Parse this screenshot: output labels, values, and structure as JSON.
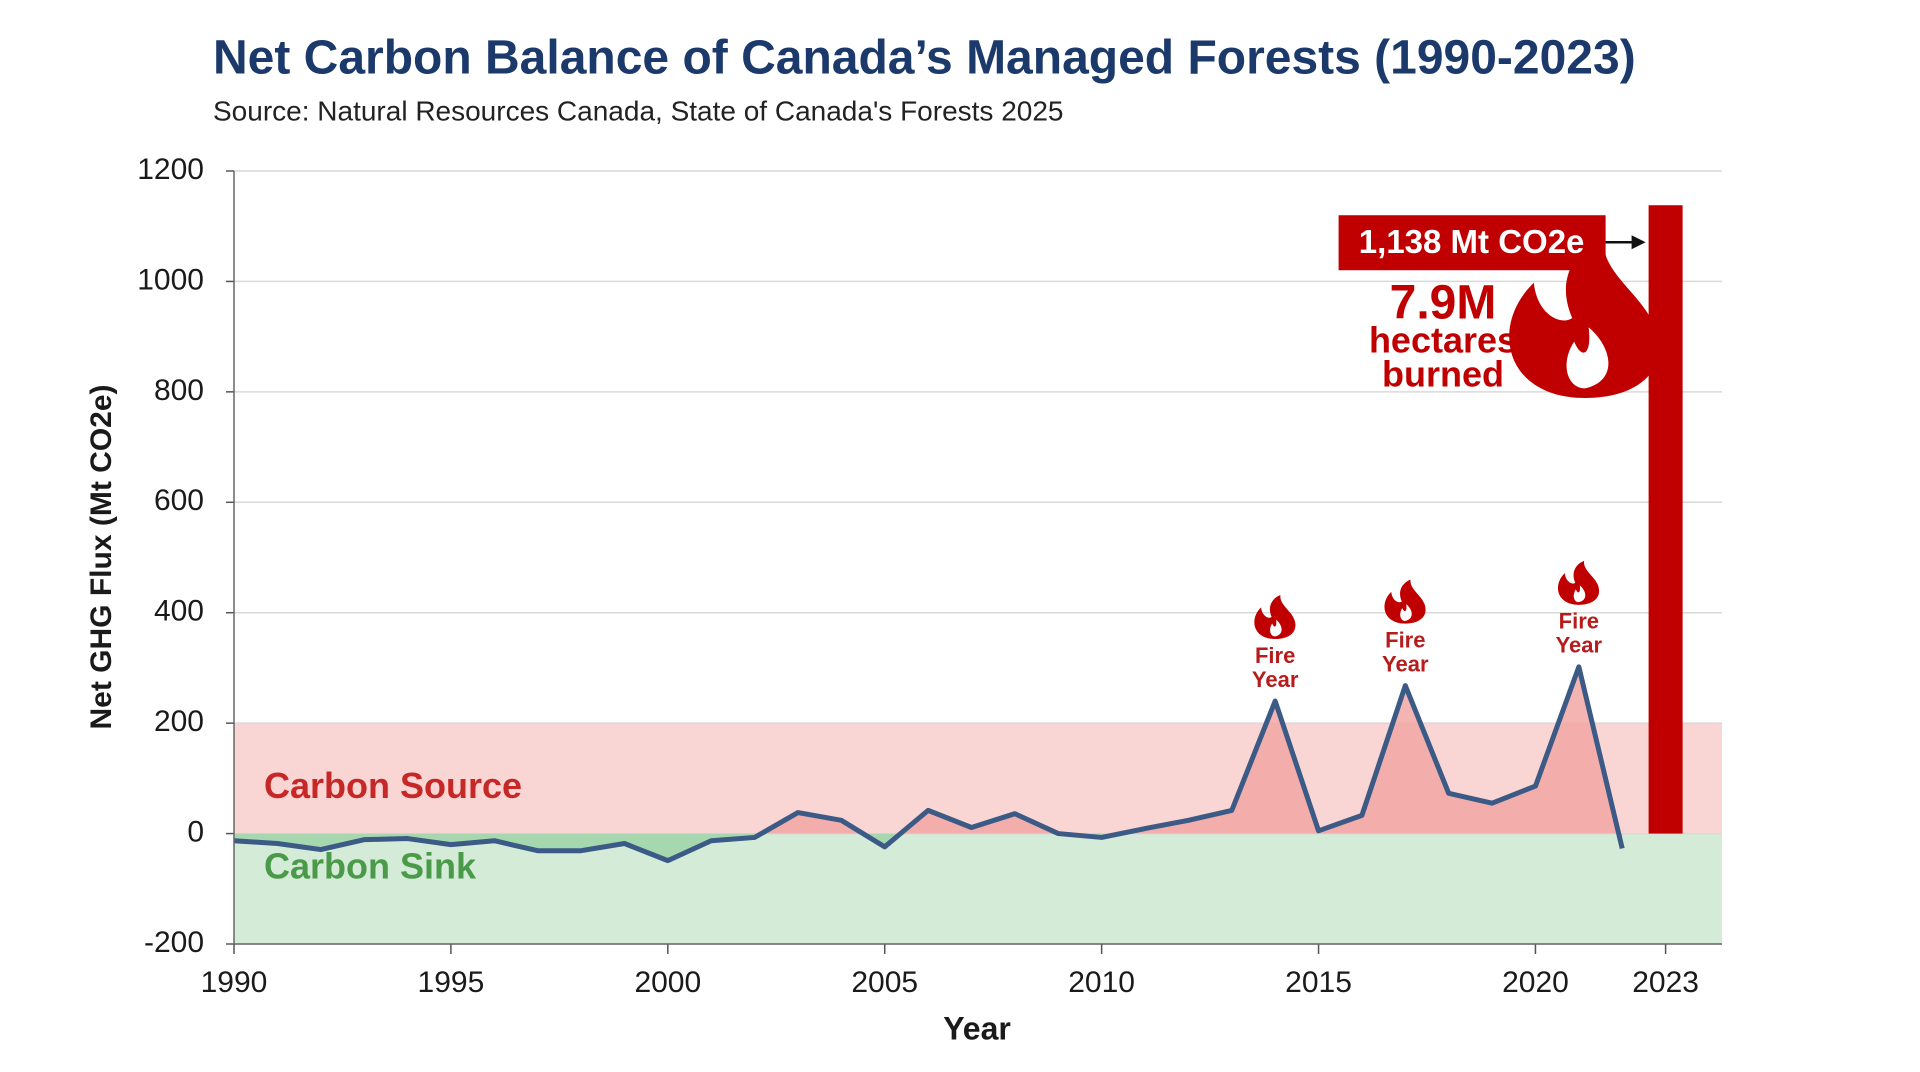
{
  "chart_data": {
    "type": "combo",
    "title": "Net Carbon Balance of Canada’s Managed Forests (1990-2023)",
    "subtitle": "Source: Natural Resources Canada, State of Canada's Forests 2025",
    "x_label": "Year",
    "y_label": "Net GHG Flux (Mt CO2e)",
    "xlim": [
      1990,
      2024.3
    ],
    "xticks": [
      1990,
      1995,
      2000,
      2005,
      2010,
      2015,
      2020,
      2023
    ],
    "ylim": [
      -200,
      1200
    ],
    "yticks": [
      -200,
      0,
      200,
      400,
      600,
      800,
      1000,
      1200
    ],
    "grid": true,
    "regions": [
      {
        "label": "Carbon Source",
        "range": [
          0,
          200
        ],
        "color": "#f9d6d4",
        "text_color": "#c62828"
      },
      {
        "label": "Carbon Sink",
        "range": [
          -200,
          0
        ],
        "color": "#d4ebd7",
        "text_color": "#4a9a4a"
      }
    ],
    "series": [
      {
        "type": "line",
        "color": "#3b5a86",
        "positive_fill": "#f2a7a4",
        "negative_fill": "#9fd3a8",
        "x": [
          1990,
          1991,
          1992,
          1993,
          1994,
          1995,
          1996,
          1997,
          1998,
          1999,
          2000,
          2001,
          2002,
          2003,
          2004,
          2005,
          2006,
          2007,
          2008,
          2009,
          2010,
          2011,
          2012,
          2013,
          2014,
          2015,
          2016,
          2017,
          2018,
          2019,
          2020,
          2021,
          2022
        ],
        "values": [
          -13,
          -18,
          -29,
          -11,
          -9,
          -20,
          -13,
          -31,
          -31,
          -18,
          -49,
          -13,
          -7,
          38,
          24,
          -24,
          42,
          11,
          36,
          0,
          -7,
          9,
          24,
          42,
          240,
          5,
          33,
          268,
          73,
          55,
          86,
          302,
          -27
        ]
      },
      {
        "type": "bar",
        "color": "#c00000",
        "x": [
          2023
        ],
        "values": [
          1138
        ],
        "value_labels": [
          "1,138 Mt CO2e"
        ]
      }
    ],
    "fire_labels": [
      {
        "x": 2014,
        "lines": [
          "Fire",
          "Year"
        ]
      },
      {
        "x": 2017,
        "lines": [
          "Fire",
          "Year"
        ]
      },
      {
        "x": 2021,
        "lines": [
          "Fire",
          "Year"
        ]
      }
    ],
    "burn_note": {
      "lines": [
        "7.9M",
        "hectares",
        "burned"
      ],
      "color": "#c00000"
    }
  }
}
